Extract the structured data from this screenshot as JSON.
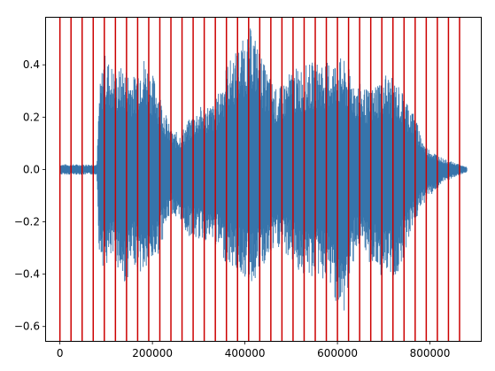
{
  "chart_data": {
    "type": "line",
    "title": "",
    "xlabel": "",
    "ylabel": "",
    "xlim": [
      -30000,
      910000
    ],
    "ylim": [
      -0.655,
      0.58
    ],
    "x_ticks": [
      0,
      200000,
      400000,
      600000,
      800000
    ],
    "x_tick_labels": [
      "0",
      "200000",
      "400000",
      "600000",
      "800000"
    ],
    "y_ticks": [
      -0.6,
      -0.4,
      -0.2,
      0.0,
      0.2,
      0.4
    ],
    "y_tick_labels": [
      "−0.6",
      "−0.4",
      "−0.2",
      "0.0",
      "0.2",
      "0.4"
    ],
    "grid": false,
    "legend": "none",
    "series": [
      {
        "kind": "waveform",
        "color": "#3674ab",
        "x_start": 0,
        "x_end": 880000,
        "envelope": [
          {
            "x": 0,
            "max": 0.02,
            "min": -0.02
          },
          {
            "x": 80000,
            "max": 0.02,
            "min": -0.02
          },
          {
            "x": 85000,
            "max": 0.3,
            "min": -0.33
          },
          {
            "x": 95000,
            "max": 0.45,
            "min": -0.38
          },
          {
            "x": 120000,
            "max": 0.38,
            "min": -0.35
          },
          {
            "x": 138000,
            "max": 0.4,
            "min": -0.45
          },
          {
            "x": 160000,
            "max": 0.36,
            "min": -0.36
          },
          {
            "x": 178000,
            "max": 0.45,
            "min": -0.41
          },
          {
            "x": 210000,
            "max": 0.33,
            "min": -0.34
          },
          {
            "x": 240000,
            "max": 0.15,
            "min": -0.16
          },
          {
            "x": 260000,
            "max": 0.14,
            "min": -0.23
          },
          {
            "x": 290000,
            "max": 0.22,
            "min": -0.27
          },
          {
            "x": 310000,
            "max": 0.25,
            "min": -0.27
          },
          {
            "x": 335000,
            "max": 0.25,
            "min": -0.29
          },
          {
            "x": 360000,
            "max": 0.4,
            "min": -0.36
          },
          {
            "x": 390000,
            "max": 0.48,
            "min": -0.4
          },
          {
            "x": 415000,
            "max": 0.55,
            "min": -0.44
          },
          {
            "x": 440000,
            "max": 0.41,
            "min": -0.38
          },
          {
            "x": 470000,
            "max": 0.3,
            "min": -0.3
          },
          {
            "x": 500000,
            "max": 0.38,
            "min": -0.35
          },
          {
            "x": 530000,
            "max": 0.4,
            "min": -0.42
          },
          {
            "x": 560000,
            "max": 0.42,
            "min": -0.41
          },
          {
            "x": 590000,
            "max": 0.42,
            "min": -0.46
          },
          {
            "x": 610000,
            "max": 0.43,
            "min": -0.6
          },
          {
            "x": 640000,
            "max": 0.34,
            "min": -0.3
          },
          {
            "x": 670000,
            "max": 0.3,
            "min": -0.36
          },
          {
            "x": 700000,
            "max": 0.38,
            "min": -0.42
          },
          {
            "x": 730000,
            "max": 0.33,
            "min": -0.41
          },
          {
            "x": 760000,
            "max": 0.24,
            "min": -0.23
          },
          {
            "x": 790000,
            "max": 0.09,
            "min": -0.12
          },
          {
            "x": 830000,
            "max": 0.04,
            "min": -0.05
          },
          {
            "x": 880000,
            "max": 0.01,
            "min": -0.01
          }
        ]
      },
      {
        "kind": "vertical_lines",
        "color": "#cc0000",
        "x": [
          0,
          24000,
          48000,
          72000,
          96000,
          120000,
          144000,
          168000,
          192000,
          216000,
          240000,
          264000,
          288000,
          312000,
          336000,
          360000,
          384000,
          408000,
          432000,
          456000,
          480000,
          504000,
          528000,
          552000,
          576000,
          600000,
          624000,
          648000,
          672000,
          696000,
          720000,
          744000,
          768000,
          792000,
          816000,
          840000,
          864000
        ]
      }
    ]
  }
}
